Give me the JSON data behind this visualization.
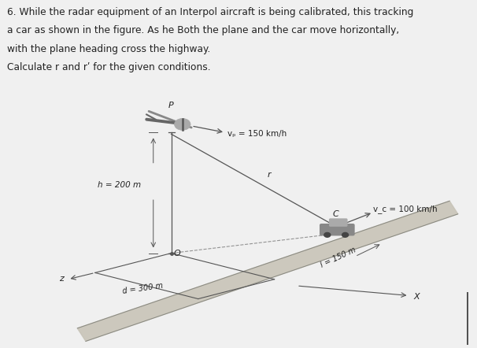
{
  "fig_bg": "#f0f0f0",
  "text_bg": "#f0f0f0",
  "diagram_bg": "#e8e6e0",
  "text_lines": [
    "6. While the radar equipment of an Interpol aircraft is being calibrated, this tracking",
    "a car as shown in the figure. As he Both the plane and the car move horizontally,",
    "with the plane heading cross the highway.",
    "Calculate r and rʹ for the given conditions."
  ],
  "vp_label": "vₚ = 150 km/h",
  "vc_label": "v_c = 100 km/h",
  "h_label": "h = 200 m",
  "d_label": "d = 300 m",
  "l_label": "l = 150 m",
  "r_label": "r",
  "P_label": "P",
  "C_label": "C",
  "O_label": "O",
  "z_label": "z",
  "X_label": "X",
  "line_color": "#555555",
  "text_color": "#222222",
  "diagram_border": "#cccccc"
}
